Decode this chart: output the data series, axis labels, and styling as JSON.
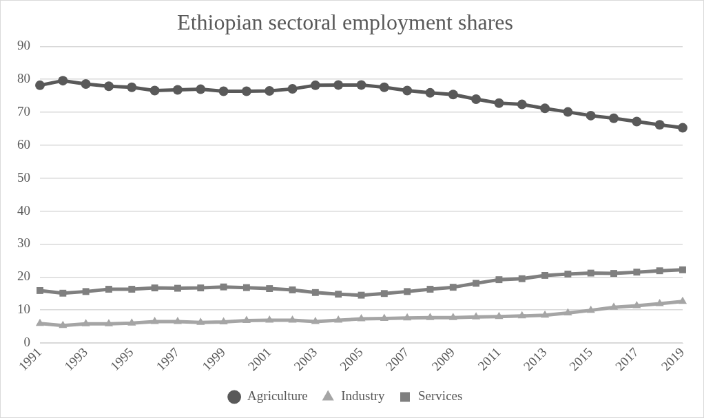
{
  "chart_data": {
    "type": "line",
    "title": "Ethiopian sectoral employment shares",
    "categories": [
      "1991",
      null,
      "1993",
      null,
      "1995",
      null,
      "1997",
      null,
      "1999",
      null,
      "2001",
      null,
      "2003",
      null,
      "2005",
      null,
      "2007",
      null,
      "2009",
      null,
      "2011",
      null,
      "2013",
      null,
      "2015",
      null,
      "2017",
      null,
      "2019"
    ],
    "series": [
      {
        "name": "Agriculture",
        "color": "#595959",
        "marker": "circle",
        "values": [
          78.2,
          79.6,
          78.6,
          77.9,
          77.6,
          76.6,
          76.8,
          77.0,
          76.4,
          76.4,
          76.5,
          77.1,
          78.2,
          78.3,
          78.3,
          77.6,
          76.6,
          75.9,
          75.4,
          74.0,
          72.8,
          72.4,
          71.2,
          70.1,
          69.0,
          68.2,
          67.2,
          66.2,
          65.3
        ]
      },
      {
        "name": "Industry",
        "color": "#a5a5a5",
        "marker": "triangle",
        "values": [
          5.9,
          5.3,
          5.8,
          5.8,
          6.0,
          6.5,
          6.5,
          6.2,
          6.4,
          6.8,
          6.9,
          6.9,
          6.5,
          6.9,
          7.3,
          7.4,
          7.6,
          7.7,
          7.7,
          7.9,
          8.0,
          8.2,
          8.4,
          9.1,
          9.9,
          10.8,
          11.3,
          11.9,
          12.6
        ]
      },
      {
        "name": "Services",
        "color": "#7f7f7f",
        "marker": "square",
        "values": [
          15.9,
          15.1,
          15.6,
          16.3,
          16.3,
          16.7,
          16.6,
          16.7,
          17.0,
          16.8,
          16.5,
          16.1,
          15.3,
          14.8,
          14.5,
          15.0,
          15.6,
          16.3,
          16.9,
          18.1,
          19.2,
          19.5,
          20.5,
          20.9,
          21.2,
          21.1,
          21.5,
          21.9,
          22.2
        ]
      }
    ],
    "ylim": [
      0,
      90
    ],
    "yticks": [
      0,
      10,
      20,
      30,
      40,
      50,
      60,
      70,
      80,
      90
    ],
    "grid": "y",
    "legend": "bottom",
    "line_style": "solid"
  }
}
